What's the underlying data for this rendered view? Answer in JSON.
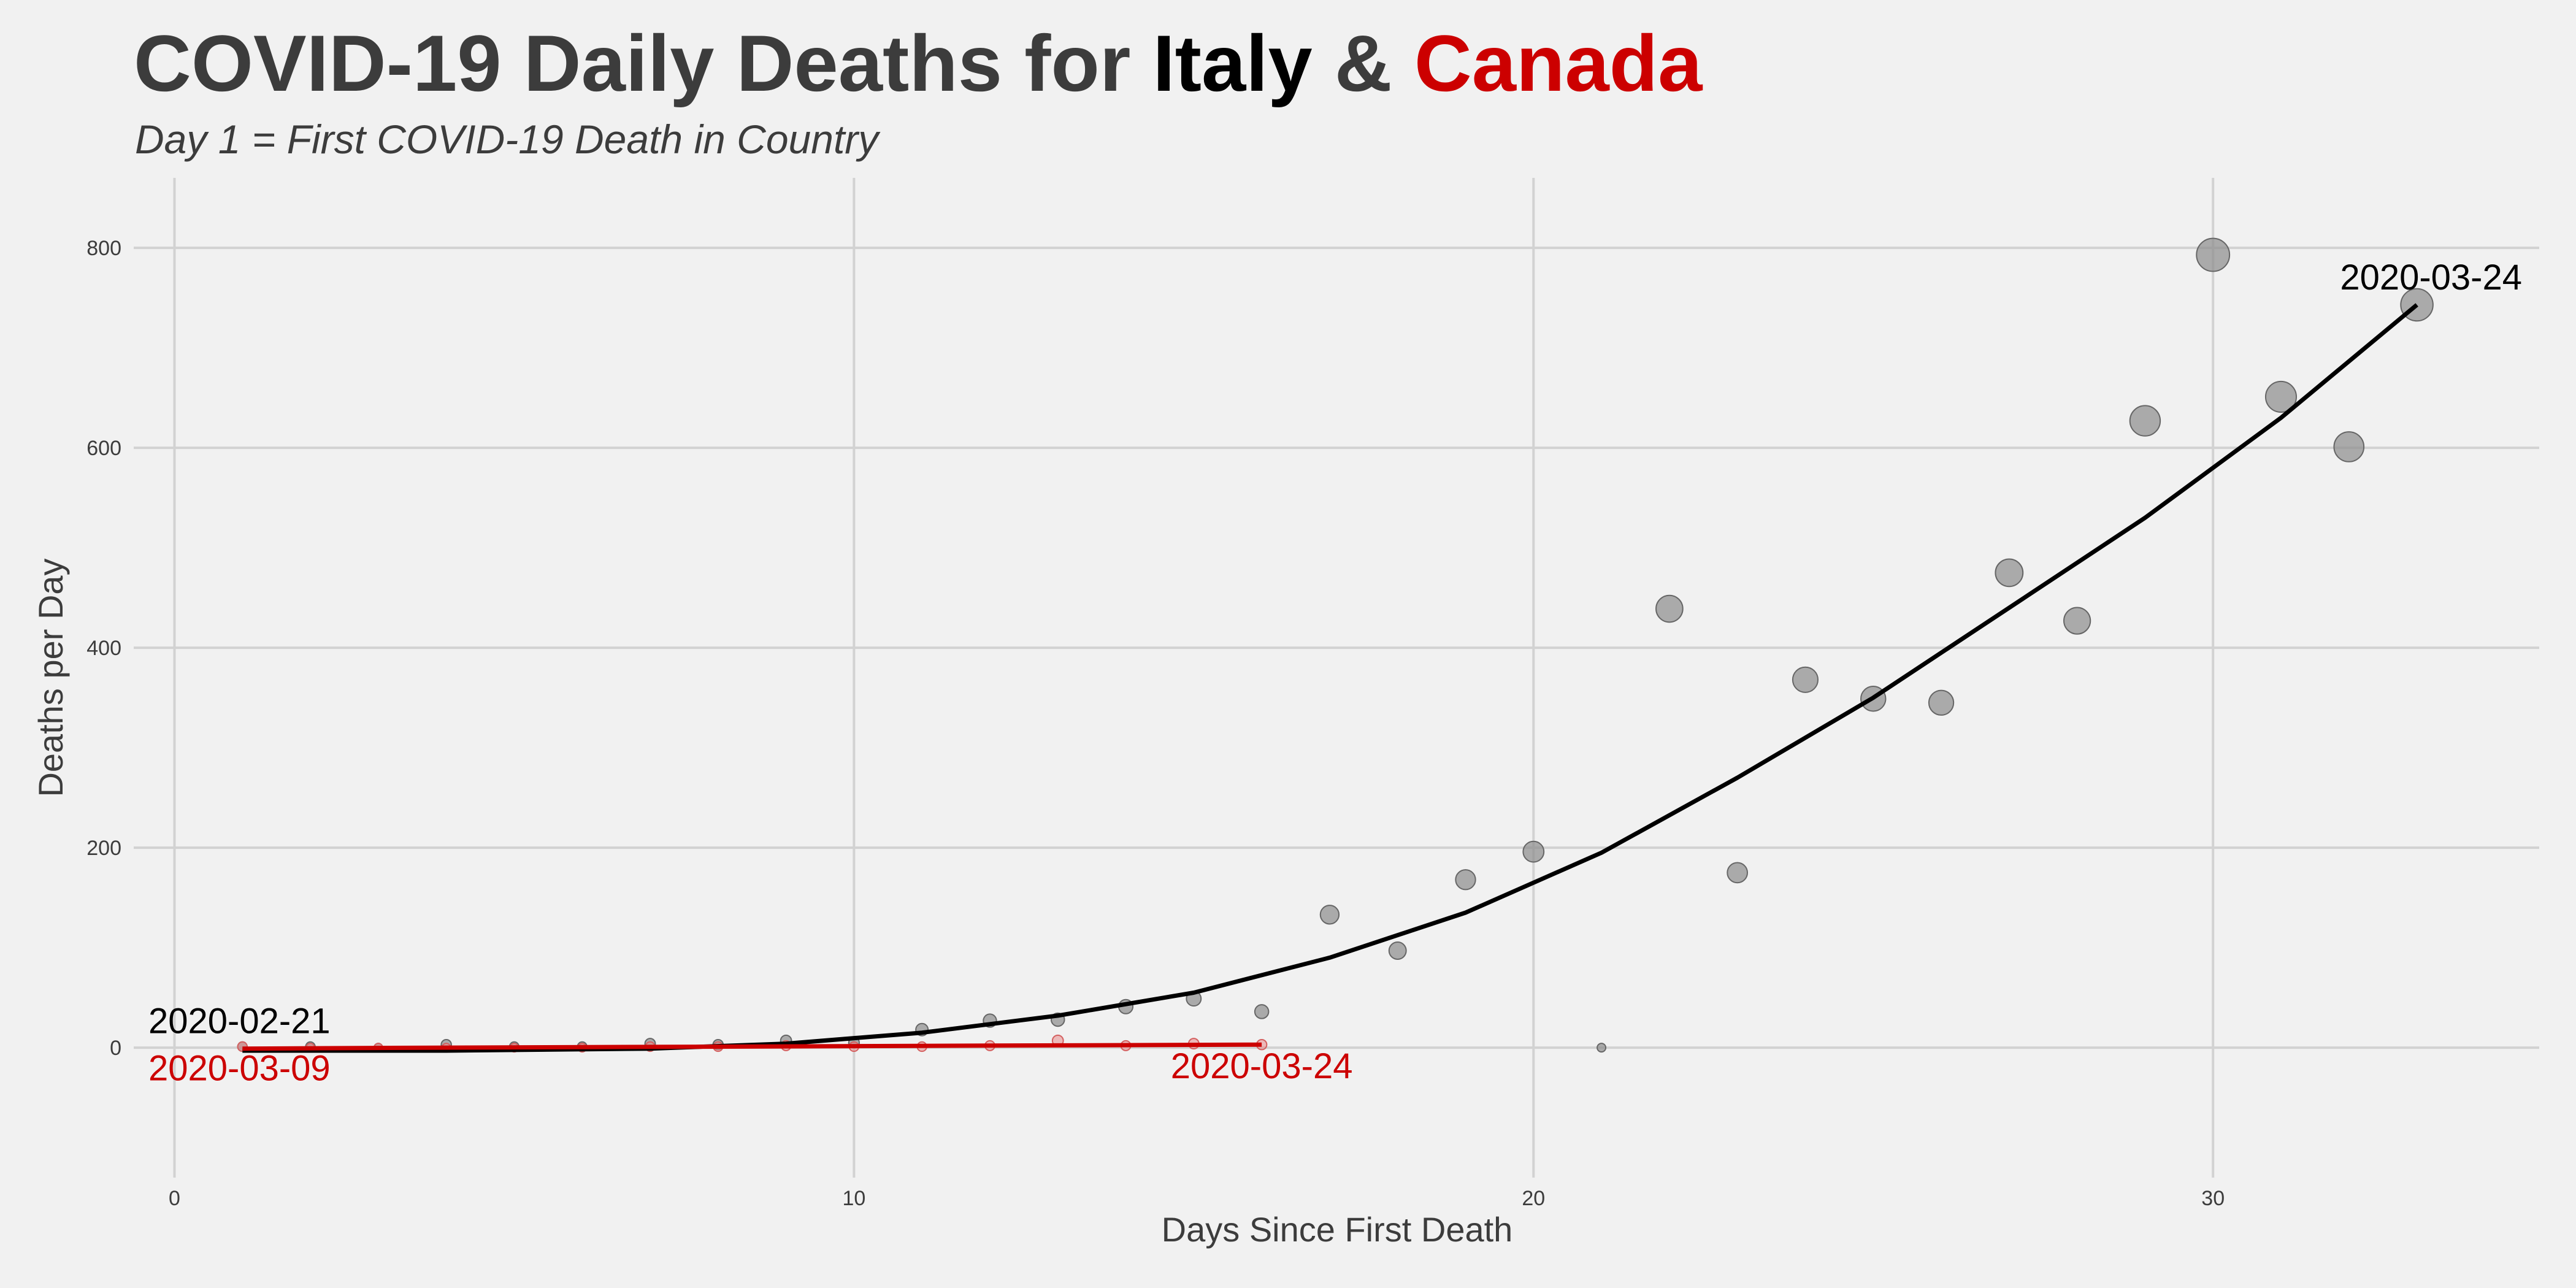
{
  "chart_data": {
    "type": "scatter",
    "title": {
      "prefix": "COVID-19 Daily Deaths for ",
      "series_a": "Italy",
      "joiner": " & ",
      "series_b": "Canada"
    },
    "subtitle": "Day 1 = First COVID-19 Death in Country",
    "xlabel": "Days Since First Death",
    "ylabel": "Deaths per Day",
    "xlim": [
      -0.6,
      34.8
    ],
    "ylim": [
      -130,
      870
    ],
    "xticks": [
      0,
      10,
      20,
      30
    ],
    "yticks": [
      0,
      200,
      400,
      600,
      800
    ],
    "grid": true,
    "legend": "none",
    "colors": {
      "italy": "#000000",
      "canada": "#cc0000",
      "title": "#3c3c3c",
      "points": "#8c8c8c"
    },
    "series": [
      {
        "key": "italy",
        "points": [
          {
            "x": 1,
            "y": 1
          },
          {
            "x": 2,
            "y": 1
          },
          {
            "x": 3,
            "y": 0
          },
          {
            "x": 4,
            "y": 3
          },
          {
            "x": 5,
            "y": 1
          },
          {
            "x": 6,
            "y": 1
          },
          {
            "x": 7,
            "y": 4
          },
          {
            "x": 8,
            "y": 3
          },
          {
            "x": 9,
            "y": 7
          },
          {
            "x": 10,
            "y": 5
          },
          {
            "x": 11,
            "y": 18
          },
          {
            "x": 12,
            "y": 27
          },
          {
            "x": 13,
            "y": 28
          },
          {
            "x": 14,
            "y": 41
          },
          {
            "x": 15,
            "y": 49
          },
          {
            "x": 16,
            "y": 36
          },
          {
            "x": 17,
            "y": 133
          },
          {
            "x": 18,
            "y": 97
          },
          {
            "x": 19,
            "y": 168
          },
          {
            "x": 20,
            "y": 196
          },
          {
            "x": 21,
            "y": 0
          },
          {
            "x": 22,
            "y": 439
          },
          {
            "x": 23,
            "y": 175
          },
          {
            "x": 24,
            "y": 368
          },
          {
            "x": 25,
            "y": 349
          },
          {
            "x": 26,
            "y": 345
          },
          {
            "x": 27,
            "y": 475
          },
          {
            "x": 28,
            "y": 427
          },
          {
            "x": 29,
            "y": 627
          },
          {
            "x": 30,
            "y": 793
          },
          {
            "x": 31,
            "y": 651
          },
          {
            "x": 32,
            "y": 601
          },
          {
            "x": 33,
            "y": 743
          }
        ],
        "trend": [
          {
            "x": 1,
            "y": -3
          },
          {
            "x": 4,
            "y": -3
          },
          {
            "x": 7,
            "y": -1
          },
          {
            "x": 9,
            "y": 4
          },
          {
            "x": 11,
            "y": 15
          },
          {
            "x": 13,
            "y": 32
          },
          {
            "x": 15,
            "y": 55
          },
          {
            "x": 17,
            "y": 90
          },
          {
            "x": 19,
            "y": 135
          },
          {
            "x": 21,
            "y": 195
          },
          {
            "x": 23,
            "y": 270
          },
          {
            "x": 25,
            "y": 350
          },
          {
            "x": 27,
            "y": 440
          },
          {
            "x": 29,
            "y": 530
          },
          {
            "x": 31,
            "y": 630
          },
          {
            "x": 33,
            "y": 743
          }
        ],
        "start_label": "2020-02-21",
        "end_label": "2020-03-24"
      },
      {
        "key": "canada",
        "points": [
          {
            "x": 1,
            "y": 1
          },
          {
            "x": 2,
            "y": 0
          },
          {
            "x": 3,
            "y": 0
          },
          {
            "x": 4,
            "y": 0
          },
          {
            "x": 5,
            "y": 0
          },
          {
            "x": 6,
            "y": 0
          },
          {
            "x": 7,
            "y": 1
          },
          {
            "x": 8,
            "y": 1
          },
          {
            "x": 9,
            "y": 2
          },
          {
            "x": 10,
            "y": 1
          },
          {
            "x": 11,
            "y": 1
          },
          {
            "x": 12,
            "y": 2
          },
          {
            "x": 13,
            "y": 7
          },
          {
            "x": 14,
            "y": 2
          },
          {
            "x": 15,
            "y": 4
          },
          {
            "x": 16,
            "y": 3
          }
        ],
        "trend": [
          {
            "x": 1,
            "y": -1
          },
          {
            "x": 4,
            "y": 0
          },
          {
            "x": 8,
            "y": 1
          },
          {
            "x": 12,
            "y": 2
          },
          {
            "x": 16,
            "y": 3
          }
        ],
        "start_label": "2020-03-09",
        "end_label": "2020-03-24"
      }
    ]
  }
}
